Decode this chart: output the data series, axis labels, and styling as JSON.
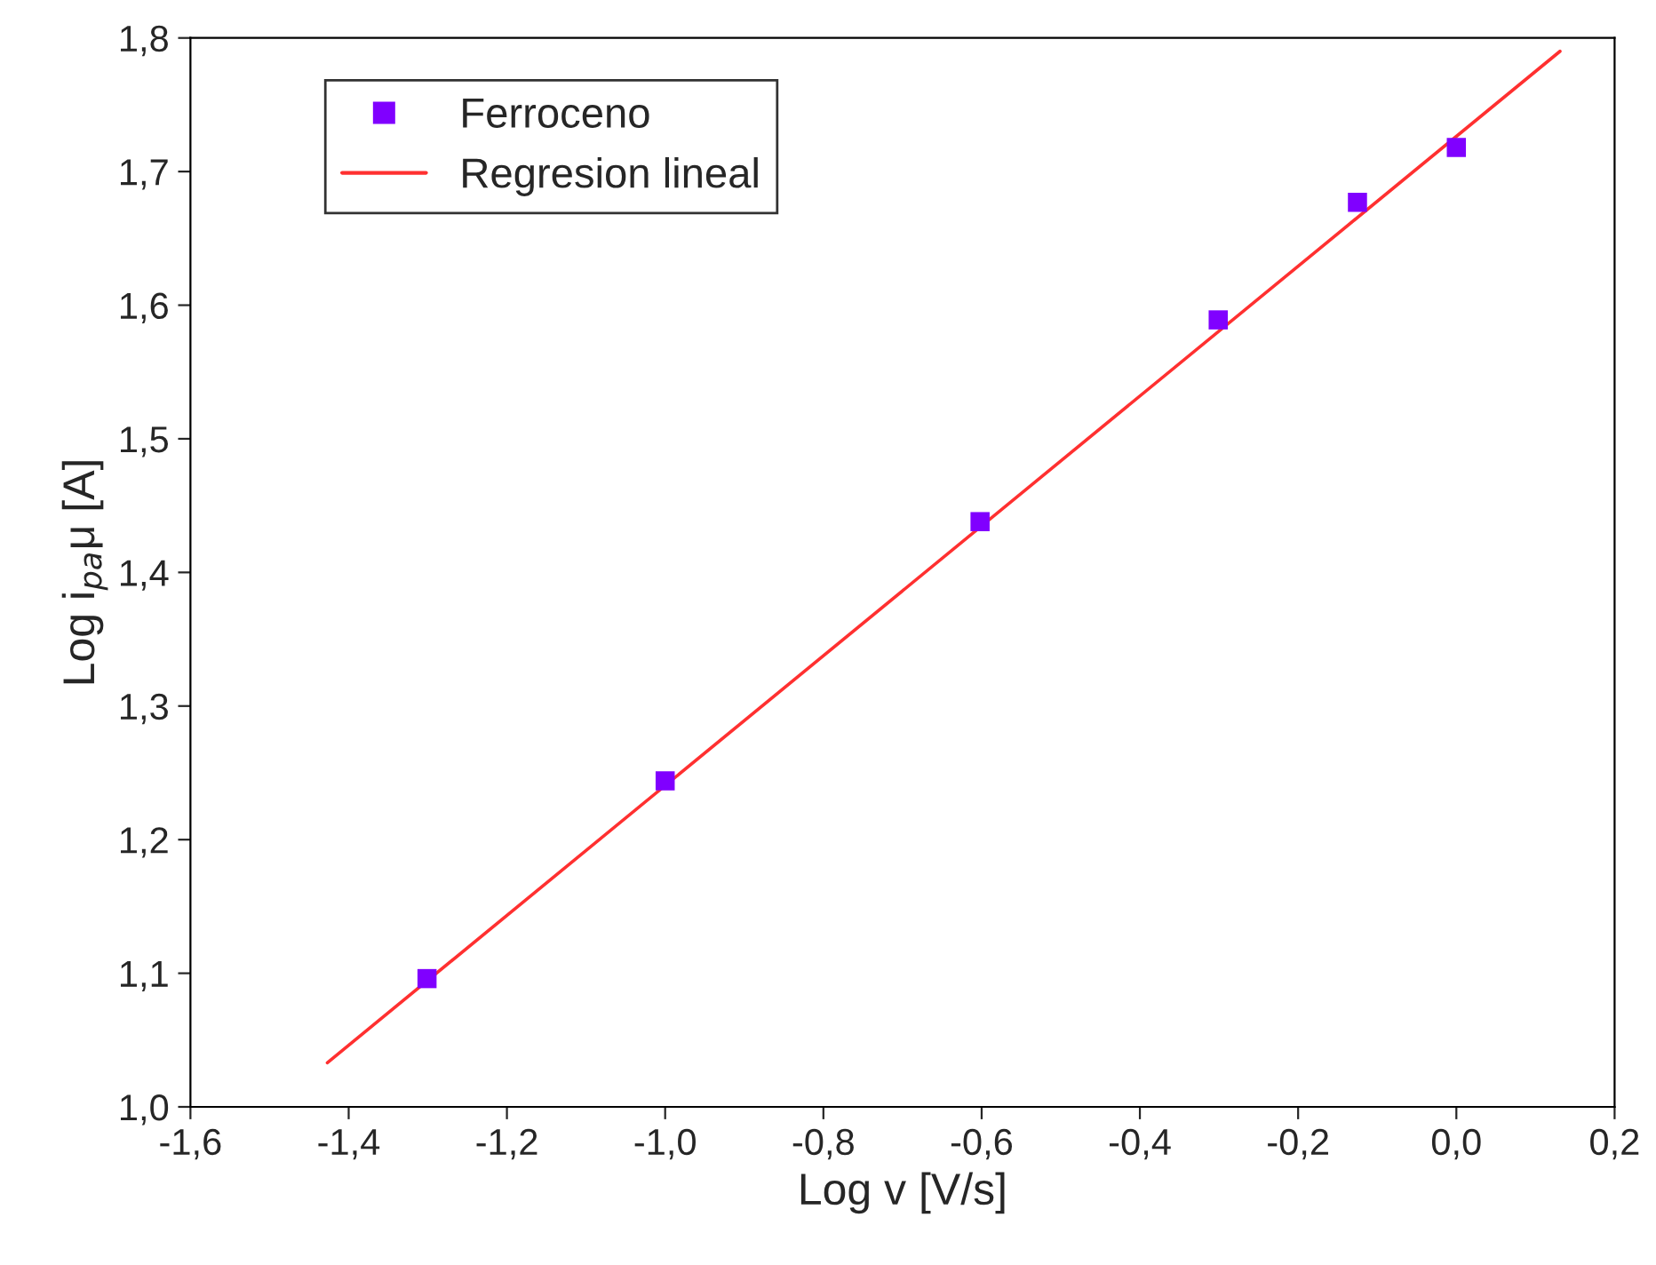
{
  "chart_data": {
    "type": "scatter",
    "xlabel": "Log v [V/s]",
    "ylabel": "Log i$_{pa}$μ [A]",
    "series": [
      {
        "name": "Ferroceno",
        "color": "#8000ff",
        "marker": "square",
        "x": [
          -1.301,
          -1.0,
          -0.602,
          -0.301,
          -0.125,
          0.0
        ],
        "values": [
          1.096,
          1.244,
          1.438,
          1.589,
          1.677,
          1.718
        ]
      },
      {
        "name": "Regresion lineal",
        "type": "line",
        "color": "#ff3030",
        "marker": "none",
        "line_style": "solid",
        "x": [
          -1.427,
          0.131
        ],
        "values": [
          1.033,
          1.79
        ]
      }
    ],
    "xlim": [
      -1.6,
      0.2
    ],
    "ylim": [
      1.0,
      1.8
    ],
    "xticks": [
      {
        "value": -1.6,
        "label": "-1,6"
      },
      {
        "value": -1.4,
        "label": "-1,4"
      },
      {
        "value": -1.2,
        "label": "-1,2"
      },
      {
        "value": -1.0,
        "label": "-1,0"
      },
      {
        "value": -0.8,
        "label": "-0,8"
      },
      {
        "value": -0.6,
        "label": "-0,6"
      },
      {
        "value": -0.4,
        "label": "-0,4"
      },
      {
        "value": -0.2,
        "label": "-0,2"
      },
      {
        "value": 0.0,
        "label": "0,0"
      },
      {
        "value": 0.2,
        "label": "0,2"
      }
    ],
    "yticks": [
      {
        "value": 1.0,
        "label": "1,0"
      },
      {
        "value": 1.1,
        "label": "1,1"
      },
      {
        "value": 1.2,
        "label": "1,2"
      },
      {
        "value": 1.3,
        "label": "1,3"
      },
      {
        "value": 1.4,
        "label": "1,4"
      },
      {
        "value": 1.5,
        "label": "1,5"
      },
      {
        "value": 1.6,
        "label": "1,6"
      },
      {
        "value": 1.7,
        "label": "1,7"
      },
      {
        "value": 1.8,
        "label": "1,8"
      }
    ],
    "grid": false,
    "legend": "top left"
  }
}
